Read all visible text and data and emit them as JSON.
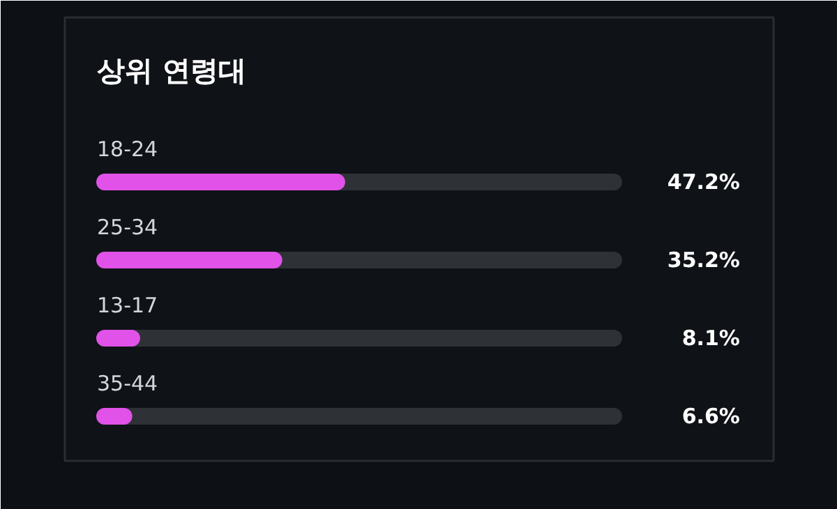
{
  "chart_data": {
    "type": "bar",
    "orientation": "horizontal",
    "title": "상위 연령대",
    "categories": [
      "18-24",
      "25-34",
      "13-17",
      "35-44"
    ],
    "values": [
      47.2,
      35.2,
      8.1,
      6.6
    ],
    "value_labels": [
      "47.2%",
      "35.2%",
      "8.1%",
      "6.6%"
    ],
    "color": "#e052e8",
    "xlim": [
      0,
      100
    ],
    "tick_labels": false
  }
}
